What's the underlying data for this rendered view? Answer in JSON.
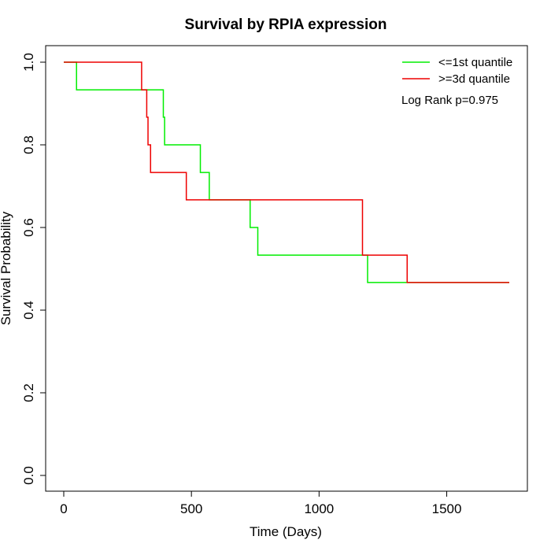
{
  "chart_data": {
    "type": "line",
    "step": true,
    "title": "Survival by RPIA expression",
    "xlabel": "Time (Days)",
    "ylabel": "Survival Probability",
    "xlim": [
      0,
      1750
    ],
    "ylim": [
      0,
      1
    ],
    "x_ticks": [
      0,
      500,
      1000,
      1500
    ],
    "x_tick_labels": [
      "0",
      "500",
      "1000",
      "1500"
    ],
    "y_ticks": [
      0,
      0.2,
      0.4,
      0.6,
      0.8,
      1.0
    ],
    "y_tick_labels": [
      "0.0",
      "0.2",
      "0.4",
      "0.6",
      "0.8",
      "1.0"
    ],
    "grid": false,
    "legend_position": "top-right",
    "annotation": "Log Rank p=0.975",
    "series": [
      {
        "name": "<=1st quantile",
        "color": "#00ee00",
        "points": [
          [
            0,
            1.0
          ],
          [
            50,
            0.933
          ],
          [
            390,
            0.867
          ],
          [
            395,
            0.8
          ],
          [
            535,
            0.733
          ],
          [
            570,
            0.667
          ],
          [
            730,
            0.6
          ],
          [
            760,
            0.533
          ],
          [
            1190,
            0.467
          ],
          [
            1745,
            0.467
          ]
        ]
      },
      {
        "name": ">=3d quantile",
        "color": "#ee0000",
        "points": [
          [
            0,
            1.0
          ],
          [
            305,
            0.933
          ],
          [
            325,
            0.867
          ],
          [
            330,
            0.8
          ],
          [
            340,
            0.733
          ],
          [
            480,
            0.667
          ],
          [
            1170,
            0.533
          ],
          [
            1345,
            0.467
          ],
          [
            1745,
            0.467
          ]
        ]
      }
    ]
  }
}
